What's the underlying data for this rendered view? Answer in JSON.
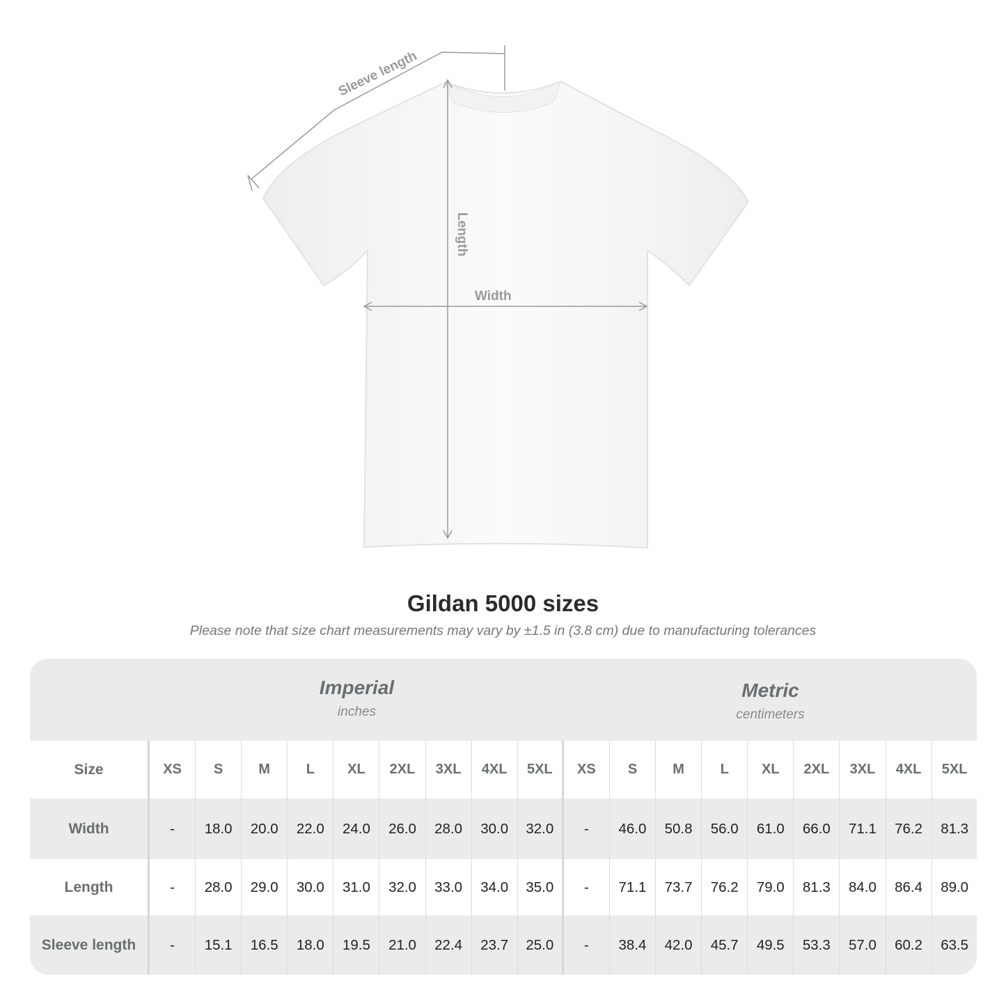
{
  "diagram": {
    "labels": {
      "sleeve": "Sleeve length",
      "length": "Length",
      "width": "Width"
    },
    "line_color": "#9a9a9a",
    "shirt_color": "#ffffff"
  },
  "title": "Gildan 5000 sizes",
  "note": "Please note that size chart measurements may vary by ±1.5 in (3.8 cm) due to manufacturing tolerances",
  "table": {
    "imperial": {
      "name": "Imperial",
      "unit": "inches"
    },
    "metric": {
      "name": "Metric",
      "unit": "centimeters"
    },
    "size_label": "Size",
    "sizes": [
      "XS",
      "S",
      "M",
      "L",
      "XL",
      "2XL",
      "3XL",
      "4XL",
      "5XL"
    ],
    "rows": [
      {
        "label": "Width",
        "imperial": [
          "-",
          "18.0",
          "20.0",
          "22.0",
          "24.0",
          "26.0",
          "28.0",
          "30.0",
          "32.0"
        ],
        "metric": [
          "-",
          "46.0",
          "50.8",
          "56.0",
          "61.0",
          "66.0",
          "71.1",
          "76.2",
          "81.3"
        ]
      },
      {
        "label": "Length",
        "imperial": [
          "-",
          "28.0",
          "29.0",
          "30.0",
          "31.0",
          "32.0",
          "33.0",
          "34.0",
          "35.0"
        ],
        "metric": [
          "-",
          "71.1",
          "73.7",
          "76.2",
          "79.0",
          "81.3",
          "84.0",
          "86.4",
          "89.0"
        ]
      },
      {
        "label": "Sleeve length",
        "imperial": [
          "-",
          "15.1",
          "16.5",
          "18.0",
          "19.5",
          "21.0",
          "22.4",
          "23.7",
          "25.0"
        ],
        "metric": [
          "-",
          "38.4",
          "42.0",
          "45.7",
          "49.5",
          "53.3",
          "57.0",
          "60.2",
          "63.5"
        ]
      }
    ],
    "colors": {
      "band": "#ebebeb",
      "header_text": "#6a6e70",
      "value_text": "#222222"
    }
  }
}
